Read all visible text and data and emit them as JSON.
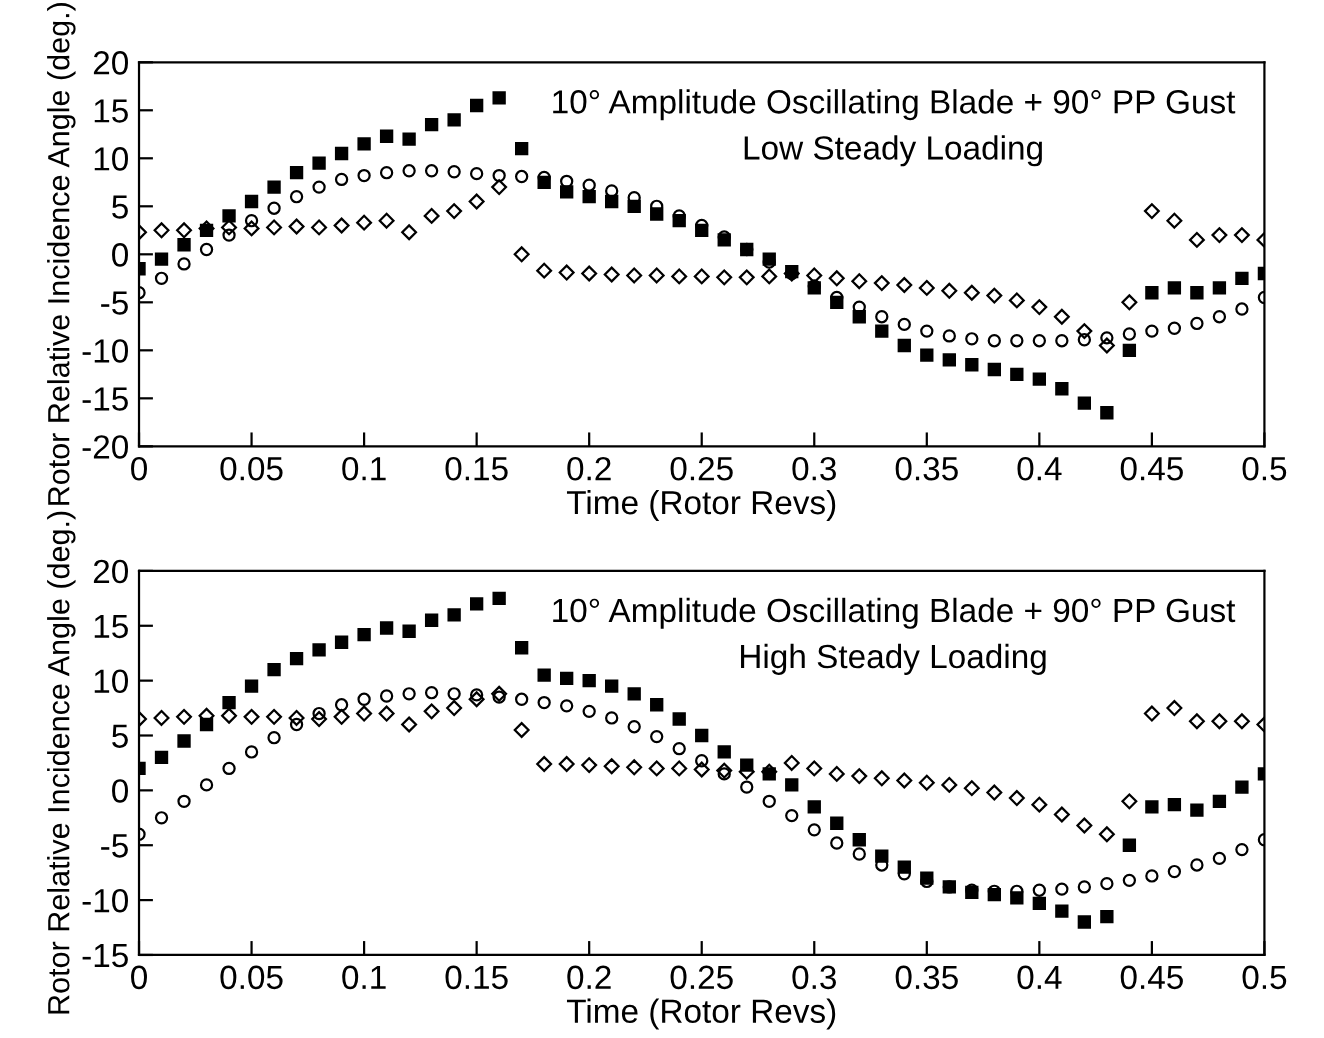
{
  "chart_data": [
    {
      "type": "scatter",
      "xlabel": "Time (Rotor Revs)",
      "ylabel": "Rotor Relative Incidence Angle (deg.)",
      "annotations": [
        "10° Amplitude Oscillating Blade + 90° PP Gust",
        "Low Steady Loading"
      ],
      "x": [
        0,
        0.01,
        0.02,
        0.03,
        0.04,
        0.05,
        0.06,
        0.07,
        0.08,
        0.09,
        0.1,
        0.11,
        0.12,
        0.13,
        0.14,
        0.15,
        0.16,
        0.17,
        0.18,
        0.19,
        0.2,
        0.21,
        0.22,
        0.23,
        0.24,
        0.25,
        0.26,
        0.27,
        0.28,
        0.29,
        0.3,
        0.31,
        0.32,
        0.33,
        0.34,
        0.35,
        0.36,
        0.37,
        0.38,
        0.39,
        0.4,
        0.41,
        0.42,
        0.43,
        0.44,
        0.45,
        0.46,
        0.47,
        0.48,
        0.49,
        0.5
      ],
      "series": [
        {
          "color": "#000000",
          "marker": "square",
          "values": [
            -1.5,
            -0.5,
            1,
            2.5,
            4,
            5.5,
            7,
            8.5,
            9.5,
            10.5,
            11.5,
            12.3,
            12,
            13.5,
            14,
            15.5,
            16.3,
            11,
            7.5,
            6.5,
            6,
            5.5,
            5,
            4.2,
            3.5,
            2.5,
            1.5,
            0.5,
            -0.5,
            -1.8,
            -3.5,
            -5,
            -6.5,
            -8,
            -9.5,
            -10.5,
            -11,
            -11.5,
            -12,
            -12.5,
            -13,
            -14,
            -15.5,
            -16.5,
            -10,
            -4,
            -3.5,
            -4,
            -3.5,
            -2.5,
            -2
          ]
        },
        {
          "color": "#000000",
          "marker": "circle",
          "values": [
            -4,
            -2.5,
            -1,
            0.5,
            2,
            3.5,
            4.8,
            6,
            7,
            7.8,
            8.2,
            8.5,
            8.7,
            8.7,
            8.6,
            8.4,
            8.2,
            8.1,
            8,
            7.6,
            7.2,
            6.6,
            5.9,
            5,
            4,
            3,
            1.8,
            0.5,
            -0.8,
            -2,
            -3.3,
            -4.5,
            -5.5,
            -6.5,
            -7.3,
            -8,
            -8.5,
            -8.8,
            -9,
            -9,
            -9,
            -9,
            -8.9,
            -8.7,
            -8.3,
            -8,
            -7.7,
            -7.2,
            -6.5,
            -5.7,
            -4.5
          ]
        },
        {
          "color": "#000000",
          "marker": "diamond",
          "values": [
            2.3,
            2.5,
            2.5,
            2.7,
            2.8,
            2.7,
            2.8,
            2.9,
            2.8,
            3,
            3.3,
            3.5,
            2.3,
            4,
            4.5,
            5.5,
            7,
            0,
            -1.7,
            -1.9,
            -2,
            -2.1,
            -2.2,
            -2.2,
            -2.3,
            -2.3,
            -2.4,
            -2.4,
            -2.3,
            -2,
            -2.2,
            -2.5,
            -2.8,
            -3,
            -3.2,
            -3.5,
            -3.8,
            -4,
            -4.3,
            -4.8,
            -5.5,
            -6.5,
            -8,
            -9.5,
            -5,
            4.5,
            3.5,
            1.5,
            2,
            2,
            1.5
          ]
        }
      ],
      "xlim": [
        0,
        0.5
      ],
      "xticks": [
        0,
        0.05,
        0.1,
        0.15,
        0.2,
        0.25,
        0.3,
        0.35,
        0.4,
        0.45,
        0.5
      ],
      "ylim": [
        -20,
        20
      ],
      "yticks": [
        -20,
        -15,
        -10,
        -5,
        0,
        5,
        10,
        15,
        20
      ],
      "grid": false,
      "legend": false
    },
    {
      "type": "scatter",
      "xlabel": "Time (Rotor Revs)",
      "ylabel": "Rotor Relative Incidence Angle (deg.)",
      "annotations": [
        "10° Amplitude Oscillating Blade + 90° PP Gust",
        "High Steady Loading"
      ],
      "x": [
        0,
        0.01,
        0.02,
        0.03,
        0.04,
        0.05,
        0.06,
        0.07,
        0.08,
        0.09,
        0.1,
        0.11,
        0.12,
        0.13,
        0.14,
        0.15,
        0.16,
        0.17,
        0.18,
        0.19,
        0.2,
        0.21,
        0.22,
        0.23,
        0.24,
        0.25,
        0.26,
        0.27,
        0.28,
        0.29,
        0.3,
        0.31,
        0.32,
        0.33,
        0.34,
        0.35,
        0.36,
        0.37,
        0.38,
        0.39,
        0.4,
        0.41,
        0.42,
        0.43,
        0.44,
        0.45,
        0.46,
        0.47,
        0.48,
        0.49,
        0.5
      ],
      "series": [
        {
          "color": "#000000",
          "marker": "square",
          "values": [
            2,
            3,
            4.5,
            6,
            8,
            9.5,
            11,
            12,
            12.8,
            13.5,
            14.2,
            14.8,
            14.5,
            15.5,
            16,
            17,
            17.5,
            13,
            10.5,
            10.2,
            10,
            9.5,
            8.8,
            7.8,
            6.5,
            5,
            3.5,
            2.3,
            1.5,
            0.5,
            -1.5,
            -3,
            -4.5,
            -6,
            -7,
            -8,
            -8.8,
            -9.3,
            -9.5,
            -9.8,
            -10.3,
            -11,
            -12,
            -11.5,
            -5,
            -1.5,
            -1.3,
            -1.8,
            -1,
            0.3,
            1.5
          ]
        },
        {
          "color": "#000000",
          "marker": "circle",
          "values": [
            -4,
            -2.5,
            -1,
            0.5,
            2,
            3.5,
            4.8,
            6,
            7,
            7.8,
            8.3,
            8.6,
            8.8,
            8.9,
            8.8,
            8.7,
            8.5,
            8.3,
            8,
            7.7,
            7.2,
            6.6,
            5.8,
            4.9,
            3.8,
            2.7,
            1.5,
            0.3,
            -1,
            -2.3,
            -3.6,
            -4.8,
            -5.8,
            -6.8,
            -7.6,
            -8.3,
            -8.8,
            -9.1,
            -9.2,
            -9.2,
            -9.1,
            -9,
            -8.8,
            -8.5,
            -8.2,
            -7.8,
            -7.4,
            -6.8,
            -6.2,
            -5.4,
            -4.5
          ]
        },
        {
          "color": "#000000",
          "marker": "diamond",
          "values": [
            6.5,
            6.6,
            6.7,
            6.8,
            6.8,
            6.7,
            6.7,
            6.6,
            6.5,
            6.7,
            7,
            7,
            6,
            7.2,
            7.5,
            8.3,
            8.8,
            5.5,
            2.4,
            2.4,
            2.3,
            2.2,
            2.1,
            2,
            2,
            1.9,
            1.8,
            1.7,
            1.7,
            2.5,
            2,
            1.5,
            1.3,
            1.1,
            0.9,
            0.7,
            0.5,
            0.2,
            -0.2,
            -0.7,
            -1.3,
            -2.2,
            -3.2,
            -4,
            -1,
            7,
            7.5,
            6.3,
            6.3,
            6.3,
            6
          ]
        }
      ],
      "xlim": [
        0,
        0.5
      ],
      "xticks": [
        0,
        0.05,
        0.1,
        0.15,
        0.2,
        0.25,
        0.3,
        0.35,
        0.4,
        0.45,
        0.5
      ],
      "ylim": [
        -15,
        20
      ],
      "yticks": [
        -15,
        -10,
        -5,
        0,
        5,
        10,
        15,
        20
      ],
      "grid": false,
      "legend": false
    }
  ]
}
